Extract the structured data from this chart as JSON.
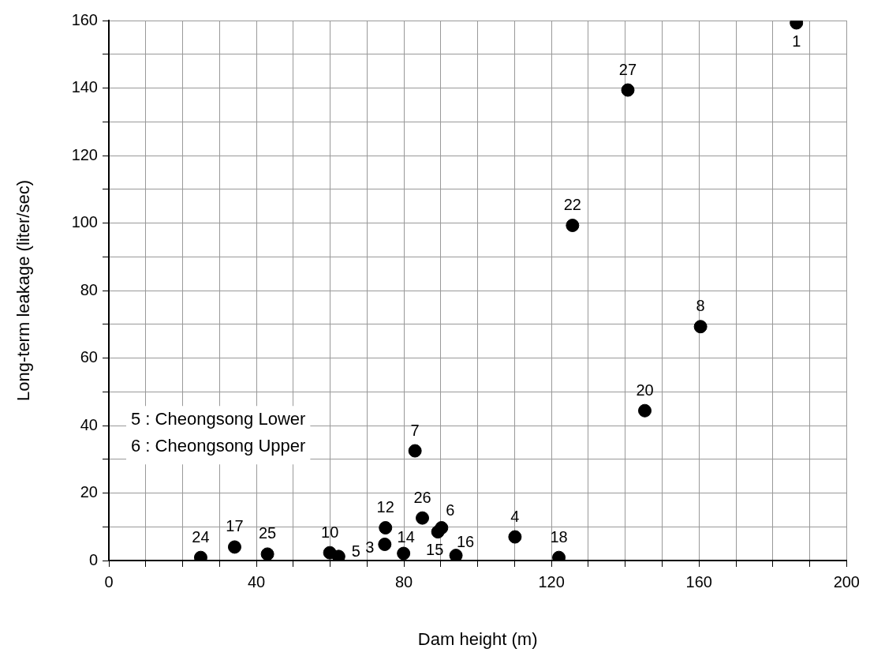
{
  "chart_data": {
    "type": "scatter",
    "xlabel": "Dam height (m)",
    "ylabel": "Long-term leakage (liter/sec)",
    "x": [
      24.9,
      34.1,
      43.0,
      59.9,
      62.3,
      74.8,
      75.0,
      79.9,
      83.0,
      85.0,
      89.2,
      90.2,
      94.1,
      110.1,
      122.0,
      145.3,
      160.4,
      125.7,
      140.7,
      186.4
    ],
    "series": [
      {
        "color": "#000000",
        "values": [
          0.9,
          4.0,
          1.9,
          2.3,
          1.2,
          4.8,
          9.7,
          2.1,
          32.5,
          12.6,
          8.5,
          9.7,
          1.5,
          7.0,
          0.9,
          44.4,
          69.3,
          99.3,
          139.4,
          159.3
        ]
      }
    ],
    "xlim": [
      0,
      200
    ],
    "xticks": [
      0,
      {
        "value": 10,
        "label": null
      },
      {
        "value": 20,
        "label": null
      },
      {
        "value": 30,
        "label": null
      },
      40,
      {
        "value": 50,
        "label": null
      },
      {
        "value": 60,
        "label": null
      },
      {
        "value": 70,
        "label": null
      },
      80,
      {
        "value": 90,
        "label": null
      },
      {
        "value": 100,
        "label": null
      },
      {
        "value": 110,
        "label": null
      },
      120,
      {
        "value": 130,
        "label": null
      },
      {
        "value": 140,
        "label": null
      },
      {
        "value": 150,
        "label": null
      },
      160,
      {
        "value": 170,
        "label": null
      },
      {
        "value": 180,
        "label": null
      },
      {
        "value": 190,
        "label": null
      },
      200
    ],
    "ylim": [
      0,
      160
    ],
    "yticks": [
      0,
      {
        "value": 10,
        "label": null
      },
      20,
      {
        "value": 30,
        "label": null
      },
      40,
      {
        "value": 50,
        "label": null
      },
      60,
      {
        "value": 70,
        "label": null
      },
      80,
      {
        "value": 90,
        "label": null
      },
      100,
      {
        "value": 110,
        "label": null
      },
      120,
      {
        "value": 130,
        "label": null
      },
      140,
      {
        "value": 150,
        "label": null
      },
      160
    ],
    "grid": true,
    "legend": false,
    "marker": "circle",
    "annotations": [
      "5 : Cheongsong Lower",
      "6 : Cheongsong Upper",
      {
        "text": "24",
        "x": 24.9,
        "y": 0.9
      },
      {
        "text": "17",
        "x": 34.1,
        "y": 4.0
      },
      {
        "text": "25",
        "x": 43.0,
        "y": 1.9
      },
      {
        "text": "10",
        "x": 59.9,
        "y": 2.3
      },
      {
        "text": "5",
        "x": 62.3,
        "y": 1.2
      },
      {
        "text": "3",
        "x": 74.8,
        "y": 4.8
      },
      {
        "text": "12",
        "x": 75.0,
        "y": 9.7
      },
      {
        "text": "14",
        "x": 79.9,
        "y": 2.1
      },
      {
        "text": "7",
        "x": 83.0,
        "y": 32.5
      },
      {
        "text": "26",
        "x": 85.0,
        "y": 12.6
      },
      {
        "text": "15",
        "x": 89.2,
        "y": 8.5
      },
      {
        "text": "6",
        "x": 90.2,
        "y": 9.7
      },
      {
        "text": "16",
        "x": 94.1,
        "y": 1.5
      },
      {
        "text": "4",
        "x": 110.1,
        "y": 7.0
      },
      {
        "text": "18",
        "x": 122.0,
        "y": 0.9
      },
      {
        "text": "20",
        "x": 145.3,
        "y": 44.4
      },
      {
        "text": "8",
        "x": 160.4,
        "y": 69.3
      },
      {
        "text": "22",
        "x": 125.7,
        "y": 99.3
      },
      {
        "text": "27",
        "x": 140.7,
        "y": 139.4
      },
      {
        "text": "1",
        "x": 186.4,
        "y": 159.3
      }
    ]
  }
}
